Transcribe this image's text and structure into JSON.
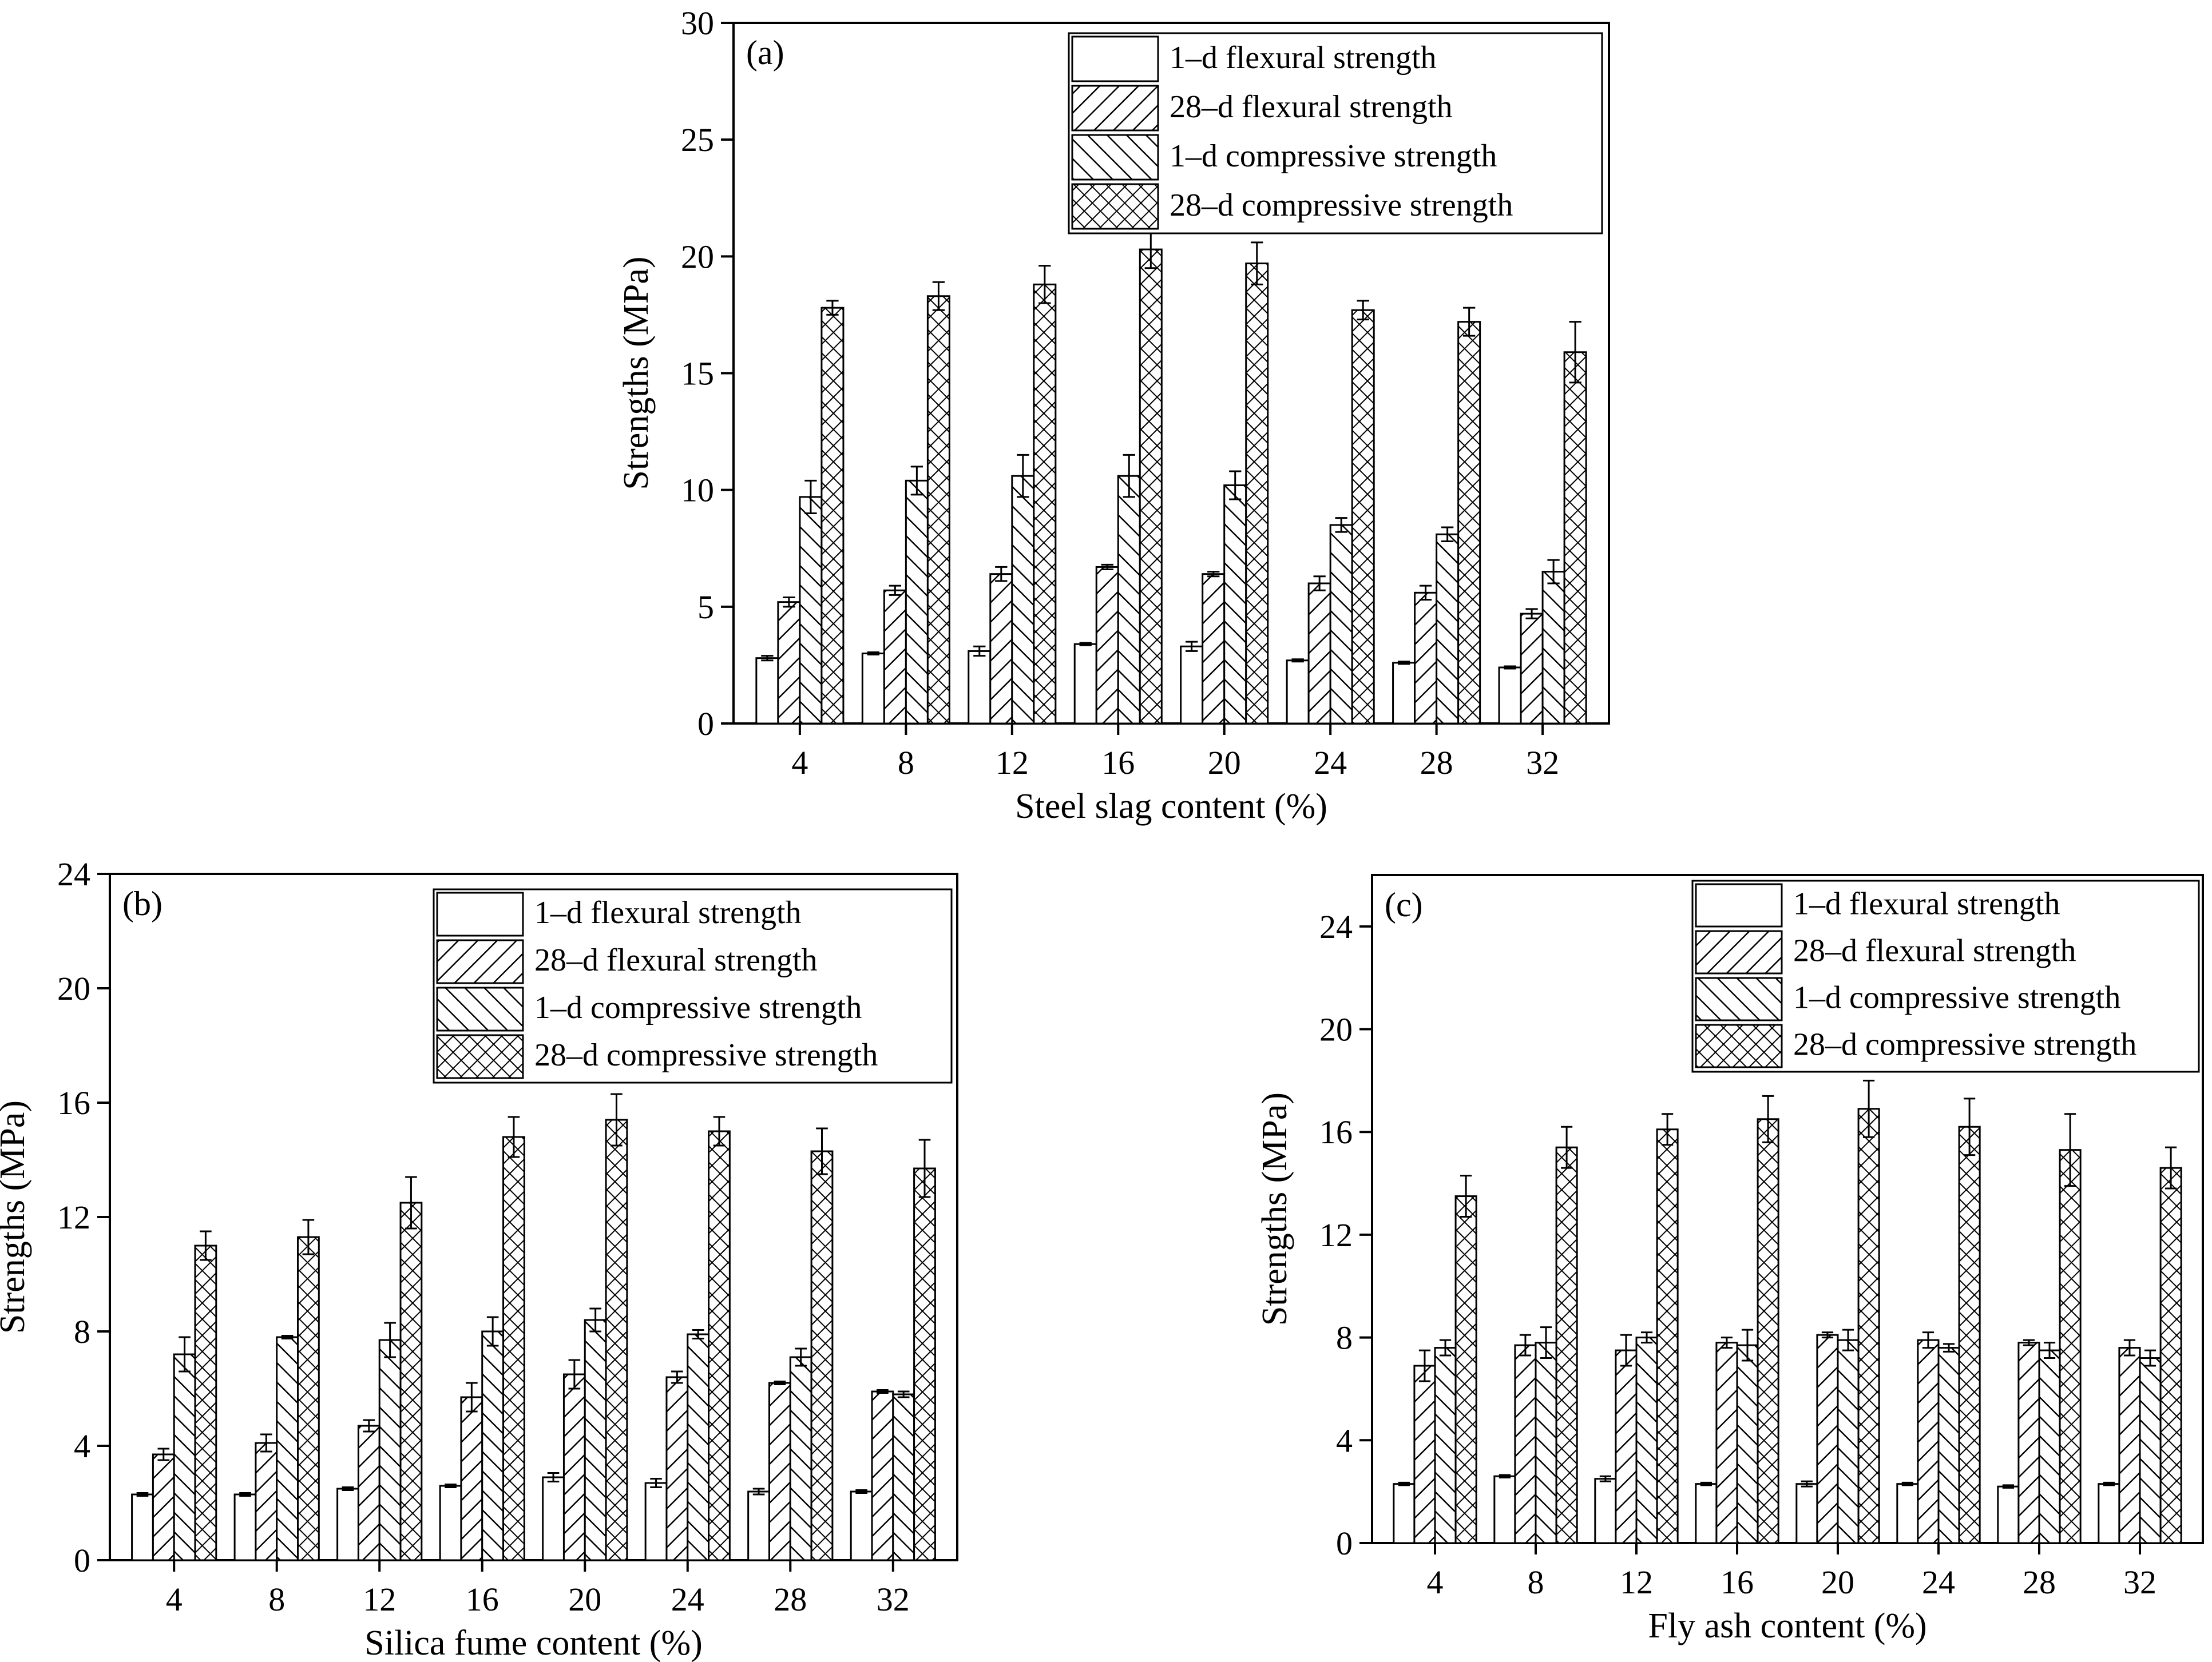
{
  "chart_data": [
    {
      "type": "bar",
      "panel": "(a)",
      "xlabel": "Steel slag content (%)",
      "ylabel": "Strengths (MPa)",
      "ylim": [
        0,
        30
      ],
      "yticks": [
        "0",
        "5",
        "10",
        "15",
        "20",
        "25",
        "30"
      ],
      "categories": [
        "4",
        "8",
        "12",
        "16",
        "20",
        "24",
        "28",
        "32"
      ],
      "legend_position": "top-right",
      "series": [
        {
          "name": "1–d flexural strength",
          "pattern": "blank",
          "values": [
            2.8,
            3.0,
            3.1,
            3.4,
            3.3,
            2.7,
            2.6,
            2.4
          ],
          "errors": [
            0.1,
            0.05,
            0.2,
            0.05,
            0.2,
            0.05,
            0.05,
            0.05
          ]
        },
        {
          "name": "28–d flexural strength",
          "pattern": "hatch-right",
          "values": [
            5.2,
            5.7,
            6.4,
            6.7,
            6.4,
            6.0,
            5.6,
            4.7
          ],
          "errors": [
            0.2,
            0.2,
            0.3,
            0.1,
            0.1,
            0.3,
            0.3,
            0.2
          ]
        },
        {
          "name": "1–d compressive strength",
          "pattern": "hatch-left",
          "values": [
            9.7,
            10.4,
            10.6,
            10.6,
            10.2,
            8.5,
            8.1,
            6.5
          ],
          "errors": [
            0.7,
            0.6,
            0.9,
            0.9,
            0.6,
            0.3,
            0.3,
            0.5
          ]
        },
        {
          "name": "28–d compressive strength",
          "pattern": "crosshatch",
          "values": [
            17.8,
            18.3,
            18.8,
            20.3,
            19.7,
            17.7,
            17.2,
            15.9
          ],
          "errors": [
            0.3,
            0.6,
            0.8,
            0.8,
            0.9,
            0.4,
            0.6,
            1.3
          ]
        }
      ]
    },
    {
      "type": "bar",
      "panel": "(b)",
      "xlabel": "Silica fume content (%)",
      "ylabel": "Strengths (MPa)",
      "ylim": [
        0,
        24
      ],
      "yticks": [
        "0",
        "4",
        "8",
        "12",
        "16",
        "20",
        "24"
      ],
      "categories": [
        "4",
        "8",
        "12",
        "16",
        "20",
        "24",
        "28",
        "32"
      ],
      "legend_position": "top-right",
      "series": [
        {
          "name": "1–d flexural strength",
          "pattern": "blank",
          "values": [
            2.3,
            2.3,
            2.5,
            2.6,
            2.9,
            2.7,
            2.4,
            2.4
          ],
          "errors": [
            0.05,
            0.05,
            0.05,
            0.05,
            0.15,
            0.15,
            0.1,
            0.05
          ]
        },
        {
          "name": "28–d flexural strength",
          "pattern": "hatch-right",
          "values": [
            3.7,
            4.1,
            4.7,
            5.7,
            6.5,
            6.4,
            6.2,
            5.9
          ],
          "errors": [
            0.2,
            0.3,
            0.2,
            0.5,
            0.5,
            0.2,
            0.05,
            0.05
          ]
        },
        {
          "name": "1–d compressive strength",
          "pattern": "hatch-left",
          "values": [
            7.2,
            7.8,
            7.7,
            8.0,
            8.4,
            7.9,
            7.1,
            5.8
          ],
          "errors": [
            0.6,
            0.05,
            0.6,
            0.5,
            0.4,
            0.15,
            0.3,
            0.1
          ]
        },
        {
          "name": "28–d compressive strength",
          "pattern": "crosshatch",
          "values": [
            11.0,
            11.3,
            12.5,
            14.8,
            15.4,
            15.0,
            14.3,
            13.7
          ],
          "errors": [
            0.5,
            0.6,
            0.9,
            0.7,
            0.9,
            0.5,
            0.8,
            1.0
          ]
        }
      ]
    },
    {
      "type": "bar",
      "panel": "(c)",
      "xlabel": "Fly ash content (%)",
      "ylabel": "Strengths (MPa)",
      "ylim": [
        0,
        26
      ],
      "yticks": [
        "0",
        "4",
        "8",
        "12",
        "16",
        "20",
        "24"
      ],
      "categories": [
        "4",
        "8",
        "12",
        "16",
        "20",
        "24",
        "28",
        "32"
      ],
      "legend_position": "top-right",
      "series": [
        {
          "name": "1–d flexural strength",
          "pattern": "blank",
          "values": [
            2.3,
            2.6,
            2.5,
            2.3,
            2.3,
            2.3,
            2.2,
            2.3
          ],
          "errors": [
            0.05,
            0.05,
            0.1,
            0.05,
            0.1,
            0.05,
            0.05,
            0.05
          ]
        },
        {
          "name": "28–d flexural strength",
          "pattern": "hatch-right",
          "values": [
            6.9,
            7.7,
            7.5,
            7.8,
            8.1,
            7.9,
            7.8,
            7.6
          ],
          "errors": [
            0.6,
            0.4,
            0.6,
            0.2,
            0.1,
            0.3,
            0.1,
            0.3
          ]
        },
        {
          "name": "1–d compressive strength",
          "pattern": "hatch-left",
          "values": [
            7.6,
            7.8,
            8.0,
            7.7,
            7.9,
            7.6,
            7.5,
            7.2
          ],
          "errors": [
            0.3,
            0.6,
            0.2,
            0.6,
            0.4,
            0.15,
            0.3,
            0.3
          ]
        },
        {
          "name": "28–d compressive strength",
          "pattern": "crosshatch",
          "values": [
            13.5,
            15.4,
            16.1,
            16.5,
            16.9,
            16.2,
            15.3,
            14.6
          ],
          "errors": [
            0.8,
            0.8,
            0.6,
            0.9,
            1.1,
            1.1,
            1.4,
            0.8
          ]
        }
      ]
    }
  ]
}
